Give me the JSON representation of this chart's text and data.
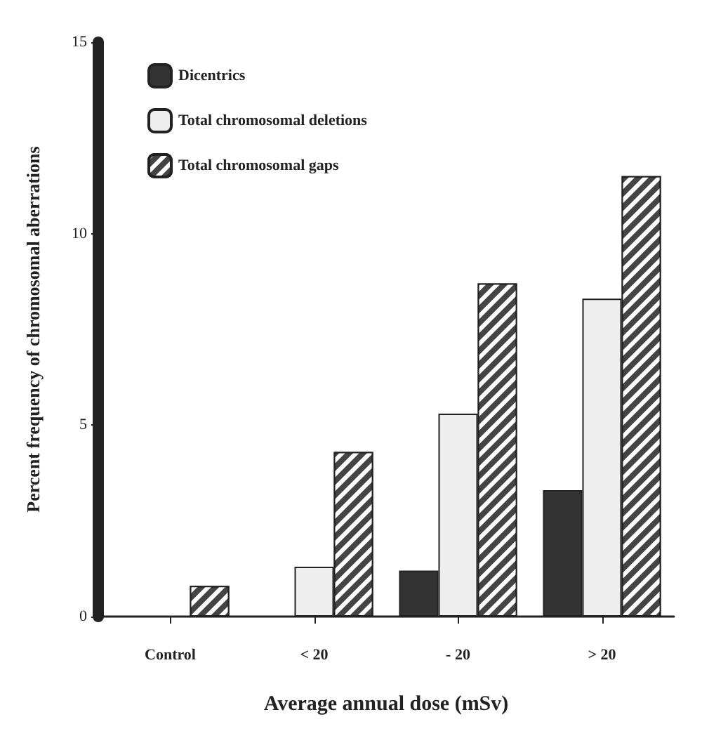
{
  "chart_data": {
    "type": "bar",
    "xlabel": "Average annual dose (mSv)",
    "ylabel": "Percent frequency of chromosomal aberrations",
    "categories": [
      "Control",
      "< 20",
      "- 20",
      "> 20"
    ],
    "series": [
      {
        "name": "Dicentrics",
        "color": "#333333",
        "values": [
          0,
          0,
          1.2,
          3.3
        ]
      },
      {
        "name": "Total chromosomal deletions",
        "color": "#eeeeee",
        "values": [
          0,
          1.3,
          5.3,
          8.3
        ]
      },
      {
        "name": "Total chromosomal gaps",
        "color": "#444444",
        "values": [
          0.8,
          4.3,
          8.7,
          11.5
        ]
      }
    ],
    "ylim": [
      0,
      15
    ],
    "yticks": [
      0,
      5,
      10,
      15
    ],
    "grid": false,
    "legend": "top left"
  }
}
